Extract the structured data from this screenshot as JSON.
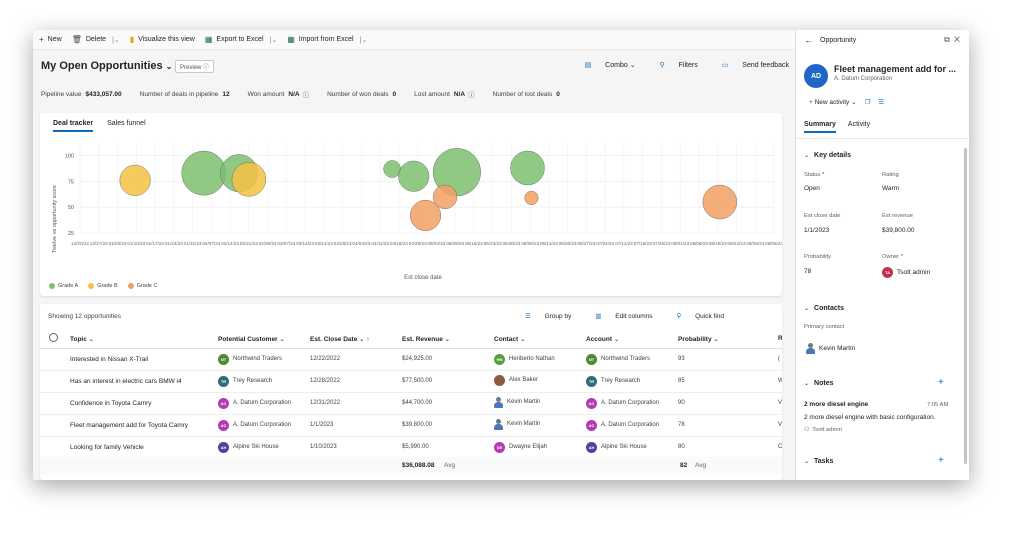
{
  "toolbar": {
    "new_label": "New",
    "delete_label": "Delete",
    "visualize_label": "Visualize this view",
    "export_label": "Export to Excel",
    "import_label": "Import from Excel"
  },
  "view": {
    "title": "My Open Opportunities",
    "preview_label": "Preview",
    "combo_label": "Combo",
    "filters_label": "Filters",
    "feedback_label": "Send feedback"
  },
  "metrics": {
    "pipeline_label": "Pipeline value",
    "pipeline_value": "$433,057.00",
    "deals_label": "Number of deals in pipeline",
    "deals_value": "12",
    "won_amount_label": "Won amount",
    "won_amount_value": "N/A",
    "won_deals_label": "Number of won deals",
    "won_deals_value": "0",
    "lost_amount_label": "Lost amount",
    "lost_amount_value": "N/A",
    "lost_deals_label": "Number of lost deals",
    "lost_deals_value": "0"
  },
  "chart_tabs": [
    "Deal tracker",
    "Sales funnel"
  ],
  "chart_data": {
    "type": "scatter",
    "ylabel": "Twelve ve opportunity score",
    "xlabel": "Est close date",
    "ylim": [
      25,
      100
    ],
    "yticks": [
      100,
      75,
      50,
      25
    ],
    "xticks": [
      "12/20/22",
      "12/27/22",
      "01/03/23",
      "01/10/23",
      "01/17/23",
      "01/24/23",
      "01/31/23",
      "02/07/23",
      "02/14/23",
      "02/21/23",
      "02/28/23",
      "03/07/23",
      "03/14/23",
      "03/21/23",
      "03/28/23",
      "04/04/23",
      "04/11/23",
      "04/18/23",
      "04/25/23",
      "05/02/23",
      "05/09/23",
      "05/16/23",
      "05/23/23",
      "05/30/23",
      "06/06/23",
      "06/13/23",
      "06/20/23",
      "06/27/23",
      "07/04/23",
      "07/11/23",
      "07/18/23",
      "07/25/23",
      "08/01/23",
      "08/08/23",
      "08/15/23",
      "08/22/23",
      "08/29/23",
      "09/05/23"
    ],
    "series": [
      {
        "name": "Grade A",
        "color": "#7cbf6f",
        "points": [
          {
            "x": 2.95,
            "y": 83,
            "r": 13
          },
          {
            "x": 3.85,
            "y": 83,
            "r": 11
          },
          {
            "x": 7.75,
            "y": 87,
            "r": 5
          },
          {
            "x": 8.3,
            "y": 80,
            "r": 9
          },
          {
            "x": 9.4,
            "y": 84,
            "r": 14
          },
          {
            "x": 11.2,
            "y": 88,
            "r": 10
          }
        ]
      },
      {
        "name": "Grade B",
        "color": "#f5c242",
        "points": [
          {
            "x": 1.2,
            "y": 76,
            "r": 9
          },
          {
            "x": 4.1,
            "y": 77,
            "r": 10
          }
        ]
      },
      {
        "name": "Grade C",
        "color": "#f2a061",
        "points": [
          {
            "x": 8.6,
            "y": 42,
            "r": 9
          },
          {
            "x": 9.1,
            "y": 60,
            "r": 7
          },
          {
            "x": 11.3,
            "y": 59,
            "r": 4
          },
          {
            "x": 16.1,
            "y": 55,
            "r": 10
          }
        ]
      }
    ]
  },
  "grid": {
    "showing_label": "Showing 12 opportunities",
    "group_by_label": "Group by",
    "edit_columns_label": "Edit columns",
    "quick_find_label": "Quick find",
    "columns": [
      "Topic",
      "Potential Customer",
      "Est. Close Date",
      "Est. Revenue",
      "Contact",
      "Account",
      "Probability",
      "Ra"
    ],
    "sort_indicator": "↑",
    "rows": [
      {
        "topic": "Interested in Nissan X-Trail",
        "cust_init": "NT",
        "cust_color": "#4d8a2e",
        "customer": "Northwind Traders",
        "date": "12/22/2022",
        "revenue": "$24,925.00",
        "contact_init": "HN",
        "contact_color": "#5a9e3a",
        "contact": "Heriberto Nathan",
        "acct_init": "NT",
        "acct_color": "#4d8a2e",
        "account": "Northwind Traders",
        "prob": "93",
        "ra": "("
      },
      {
        "topic": "Has an interest in electric cars BMW i4",
        "cust_init": "TR",
        "cust_color": "#2f6b7a",
        "customer": "Trey Research",
        "date": "12/28/2022",
        "revenue": "$77,500.00",
        "contact_init": "",
        "contact_color": "#8a5a3c",
        "contact": "Alex Baker",
        "acct_init": "TR",
        "acct_color": "#2f6b7a",
        "account": "Trey Research",
        "prob": "85",
        "ra": "W"
      },
      {
        "topic": "Confidence in Toyota Camry",
        "cust_init": "AC",
        "cust_color": "#b33bb5",
        "customer": "A. Datum Corporation",
        "date": "12/31/2022",
        "revenue": "$44,700.00",
        "contact_init": "",
        "contact_color": "",
        "contact": "Kevin Martin",
        "acct_init": "AC",
        "acct_color": "#b33bb5",
        "account": "A. Datum Corporation",
        "prob": "90",
        "ra": "V"
      },
      {
        "topic": "Fleet management add for Toyota Camry",
        "cust_init": "AC",
        "cust_color": "#b33bb5",
        "customer": "A. Datum Corporation",
        "date": "1/1/2023",
        "revenue": "$39,800.00",
        "contact_init": "",
        "contact_color": "",
        "contact": "Kevin Martin",
        "acct_init": "AC",
        "acct_color": "#b33bb5",
        "account": "A. Datum Corporation",
        "prob": "78",
        "ra": "V"
      },
      {
        "topic": "Looking for family Vehicle",
        "cust_init": "AH",
        "cust_color": "#5b3a9e",
        "customer": "Alpine Ski House",
        "date": "1/10/2023",
        "revenue": "$5,990.00",
        "contact_init": "DE",
        "contact_color": "#b33bb5",
        "contact": "Dwayne Elijah",
        "acct_init": "AH",
        "acct_color": "#5b3a9e",
        "account": "Alpine Ski House",
        "prob": "80",
        "ra": "C"
      }
    ],
    "footer_revenue": "$36,088.08",
    "footer_prob": "82",
    "avg_label": "Avg"
  },
  "panel": {
    "header": "Opportunity",
    "avatar": "AD",
    "title": "Fleet management add for ...",
    "subtitle": "A. Datum Corporation",
    "new_activity_label": "New activity",
    "tabs": [
      "Summary",
      "Activity"
    ],
    "key_details_label": "Key details",
    "status_label": "Status",
    "status_value": "Open",
    "rating_label": "Rating",
    "rating_value": "Warm",
    "close_label": "Est close date",
    "close_value": "1/1/2023",
    "revenue_label": "Est revenue",
    "revenue_value": "$39,800.00",
    "probability_label": "Probability",
    "probability_value": "78",
    "owner_label": "Owner",
    "owner_initials": "TA",
    "owner_value": "Tsott admin",
    "contacts_label": "Contacts",
    "primary_contact_label": "Primary contact",
    "primary_contact_value": "Kevin Martin",
    "notes_label": "Notes",
    "note_title": "2 more diesel engine",
    "note_time": "7:05 AM",
    "note_body": "2 more diesel engine with basic configuration.",
    "note_author": "Tsott admin",
    "tasks_label": "Tasks"
  }
}
